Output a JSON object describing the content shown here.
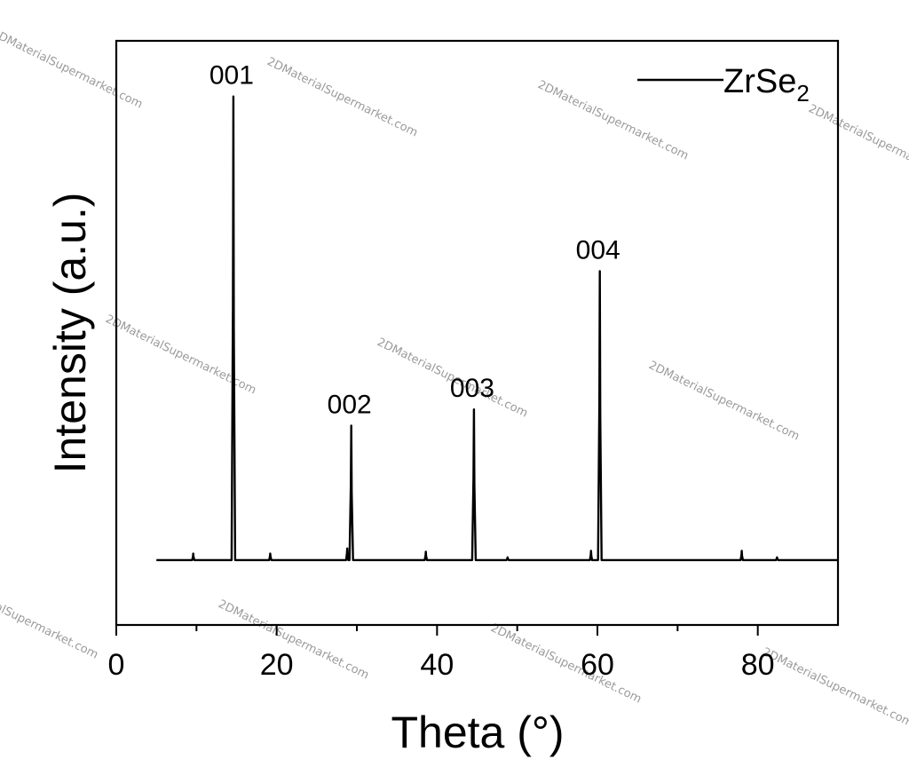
{
  "watermark_text": "2DMaterialSupermarket.com",
  "chart_data": {
    "type": "line",
    "title": "",
    "xlabel": "Theta (°)",
    "ylabel": "Intensity (a.u.)",
    "xlim": [
      0,
      90
    ],
    "ylim": [
      -0.14,
      1.12
    ],
    "x_ticks": [
      0,
      20,
      40,
      60,
      80
    ],
    "x_tick_labels": [
      "0",
      "20",
      "40",
      "60",
      "80"
    ],
    "y_ticks_shown": false,
    "grid": false,
    "legend": {
      "position": "top-right",
      "entries": [
        {
          "name": "ZrSe",
          "subscript": "2",
          "color": "#000000"
        }
      ]
    },
    "baseline": 0.0,
    "x_range": [
      5,
      90
    ],
    "series": [
      {
        "name": "ZrSe2",
        "color": "#000000",
        "peaks": [
          {
            "x": 9.6,
            "y": 0.014
          },
          {
            "x": 14.6,
            "y": 1.0
          },
          {
            "x": 19.2,
            "y": 0.014
          },
          {
            "x": 28.8,
            "y": 0.025
          },
          {
            "x": 29.3,
            "y": 0.29
          },
          {
            "x": 38.6,
            "y": 0.018
          },
          {
            "x": 44.6,
            "y": 0.325
          },
          {
            "x": 48.8,
            "y": 0.006
          },
          {
            "x": 59.2,
            "y": 0.02
          },
          {
            "x": 60.3,
            "y": 0.623
          },
          {
            "x": 78.0,
            "y": 0.02
          },
          {
            "x": 82.4,
            "y": 0.006
          }
        ]
      }
    ],
    "annotations": [
      {
        "text": "001",
        "x": 14.6,
        "y": 1.0
      },
      {
        "text": "002",
        "x": 29.3,
        "y": 0.29
      },
      {
        "text": "003",
        "x": 44.6,
        "y": 0.325
      },
      {
        "text": "004",
        "x": 60.3,
        "y": 0.623
      }
    ]
  }
}
